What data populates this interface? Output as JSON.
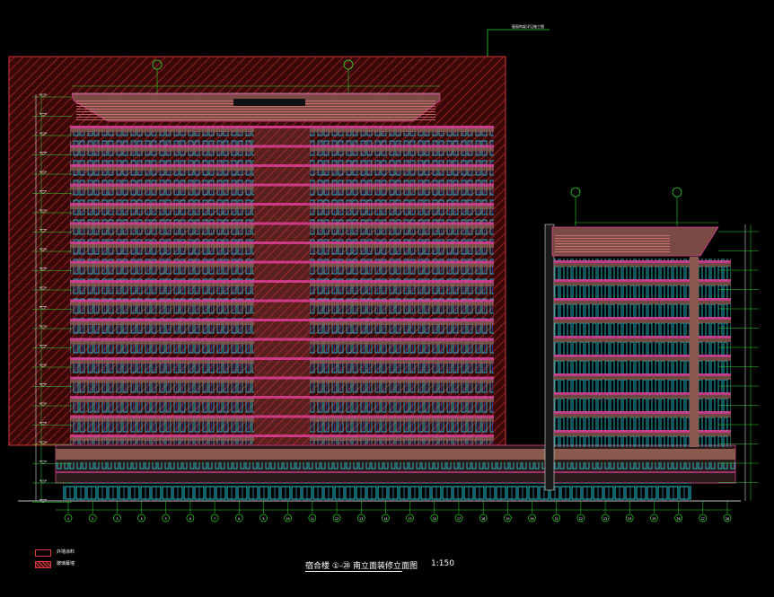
{
  "drawing": {
    "title": "宿合楼 ①-㉘ 南立面装修立面图",
    "scale": "1:150",
    "top_note": "屋面构架详见施工图"
  },
  "legend": [
    {
      "label": "外墙涂料",
      "swatch": "outline"
    },
    {
      "label": "玻璃幕墙",
      "swatch": "hatch"
    }
  ],
  "grid_labels": [
    "1",
    "2",
    "3",
    "4",
    "5",
    "6",
    "7",
    "8",
    "9",
    "10",
    "11",
    "12",
    "13",
    "14",
    "15",
    "16",
    "17",
    "18",
    "19",
    "20",
    "21",
    "22",
    "23",
    "24",
    "25",
    "26",
    "27",
    "28"
  ],
  "colors": {
    "background": "#000000",
    "hatch": "#d63a3a",
    "floor_band": "#e0409a",
    "window": "#27d7e8",
    "grid_line": "#2bd62b",
    "wall": "#8a5a4e"
  }
}
